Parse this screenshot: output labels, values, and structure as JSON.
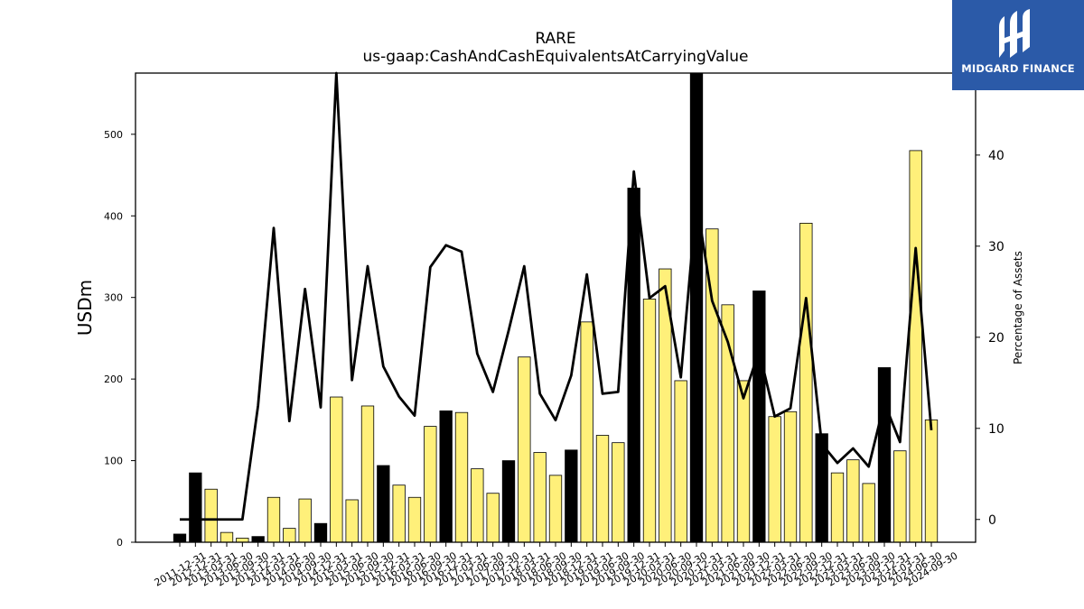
{
  "colors": {
    "bar_yellow": "#fff07a",
    "bar_black": "#000000",
    "line": "#000000",
    "logo_bg": "#2b5aa8"
  },
  "logo": {
    "text": "MIDGARD FINANCE",
    "icon": "midgard-logo-icon"
  },
  "chart_data": {
    "type": "bar",
    "title": "RARE",
    "subtitle": "us-gaap:CashAndCashEquivalentsAtCarryingValue",
    "ylabel": "USDm",
    "ylabel_right": "Percentage of Assets",
    "ylim": [
      0,
      575
    ],
    "ylim_right": [
      -2.5,
      49
    ],
    "yticks": [
      0,
      100,
      200,
      300,
      400,
      500
    ],
    "yticks_right": [
      0,
      10,
      20,
      30,
      40
    ],
    "categories": [
      "2011-12-31",
      "2012-12-31",
      "2013-03-31",
      "2013-06-30",
      "2013-09-30",
      "2013-12-31",
      "2014-03-31",
      "2014-06-30",
      "2014-09-30",
      "2014-12-31",
      "2015-03-31",
      "2015-06-30",
      "2015-09-30",
      "2015-12-31",
      "2016-03-31",
      "2016-06-30",
      "2016-09-30",
      "2016-12-31",
      "2017-03-31",
      "2017-06-30",
      "2017-09-30",
      "2017-12-31",
      "2018-03-31",
      "2018-06-30",
      "2018-09-30",
      "2018-12-31",
      "2019-03-31",
      "2019-06-30",
      "2019-09-30",
      "2019-12-31",
      "2020-03-31",
      "2020-06-30",
      "2020-09-30",
      "2020-12-31",
      "2021-03-31",
      "2021-06-30",
      "2021-09-30",
      "2021-12-31",
      "2022-03-31",
      "2022-06-30",
      "2022-09-30",
      "2022-12-31",
      "2023-03-31",
      "2023-06-30",
      "2023-09-30",
      "2023-12-31",
      "2024-03-31",
      "2024-06-30",
      "2024-09-30"
    ],
    "series": [
      {
        "type": "bar",
        "axis": "left",
        "values": [
          10,
          85,
          65,
          12,
          5,
          7,
          55,
          17,
          53,
          23,
          178,
          52,
          167,
          94,
          70,
          55,
          142,
          161,
          159,
          90,
          60,
          100,
          227,
          110,
          82,
          113,
          270,
          131,
          122,
          434,
          298,
          335,
          198,
          575,
          384,
          291,
          198,
          308,
          154,
          160,
          391,
          133,
          85,
          101,
          72,
          214,
          112,
          480,
          150
        ],
        "highlight": [
          true,
          true,
          false,
          false,
          false,
          true,
          false,
          false,
          false,
          true,
          false,
          false,
          false,
          true,
          false,
          false,
          false,
          true,
          false,
          false,
          false,
          true,
          false,
          false,
          false,
          true,
          false,
          false,
          false,
          true,
          false,
          false,
          false,
          true,
          false,
          false,
          false,
          true,
          false,
          false,
          false,
          true,
          false,
          false,
          false,
          true,
          false,
          false,
          false
        ]
      },
      {
        "type": "line",
        "axis": "right",
        "values": [
          0,
          0,
          0,
          0,
          0,
          12.5,
          32,
          10.8,
          25.3,
          12.3,
          49,
          15.3,
          27.8,
          16.8,
          13.5,
          11.4,
          27.7,
          30.1,
          29.4,
          18.2,
          14,
          20.7,
          27.8,
          13.8,
          10.9,
          15.8,
          26.9,
          13.8,
          14,
          38.2,
          24.3,
          25.6,
          15.6,
          35,
          24,
          19.5,
          13.3,
          18.5,
          11.3,
          12.2,
          24.3,
          8.3,
          6.2,
          7.8,
          5.8,
          12.8,
          8.5,
          29.8,
          9.8
        ]
      }
    ]
  }
}
